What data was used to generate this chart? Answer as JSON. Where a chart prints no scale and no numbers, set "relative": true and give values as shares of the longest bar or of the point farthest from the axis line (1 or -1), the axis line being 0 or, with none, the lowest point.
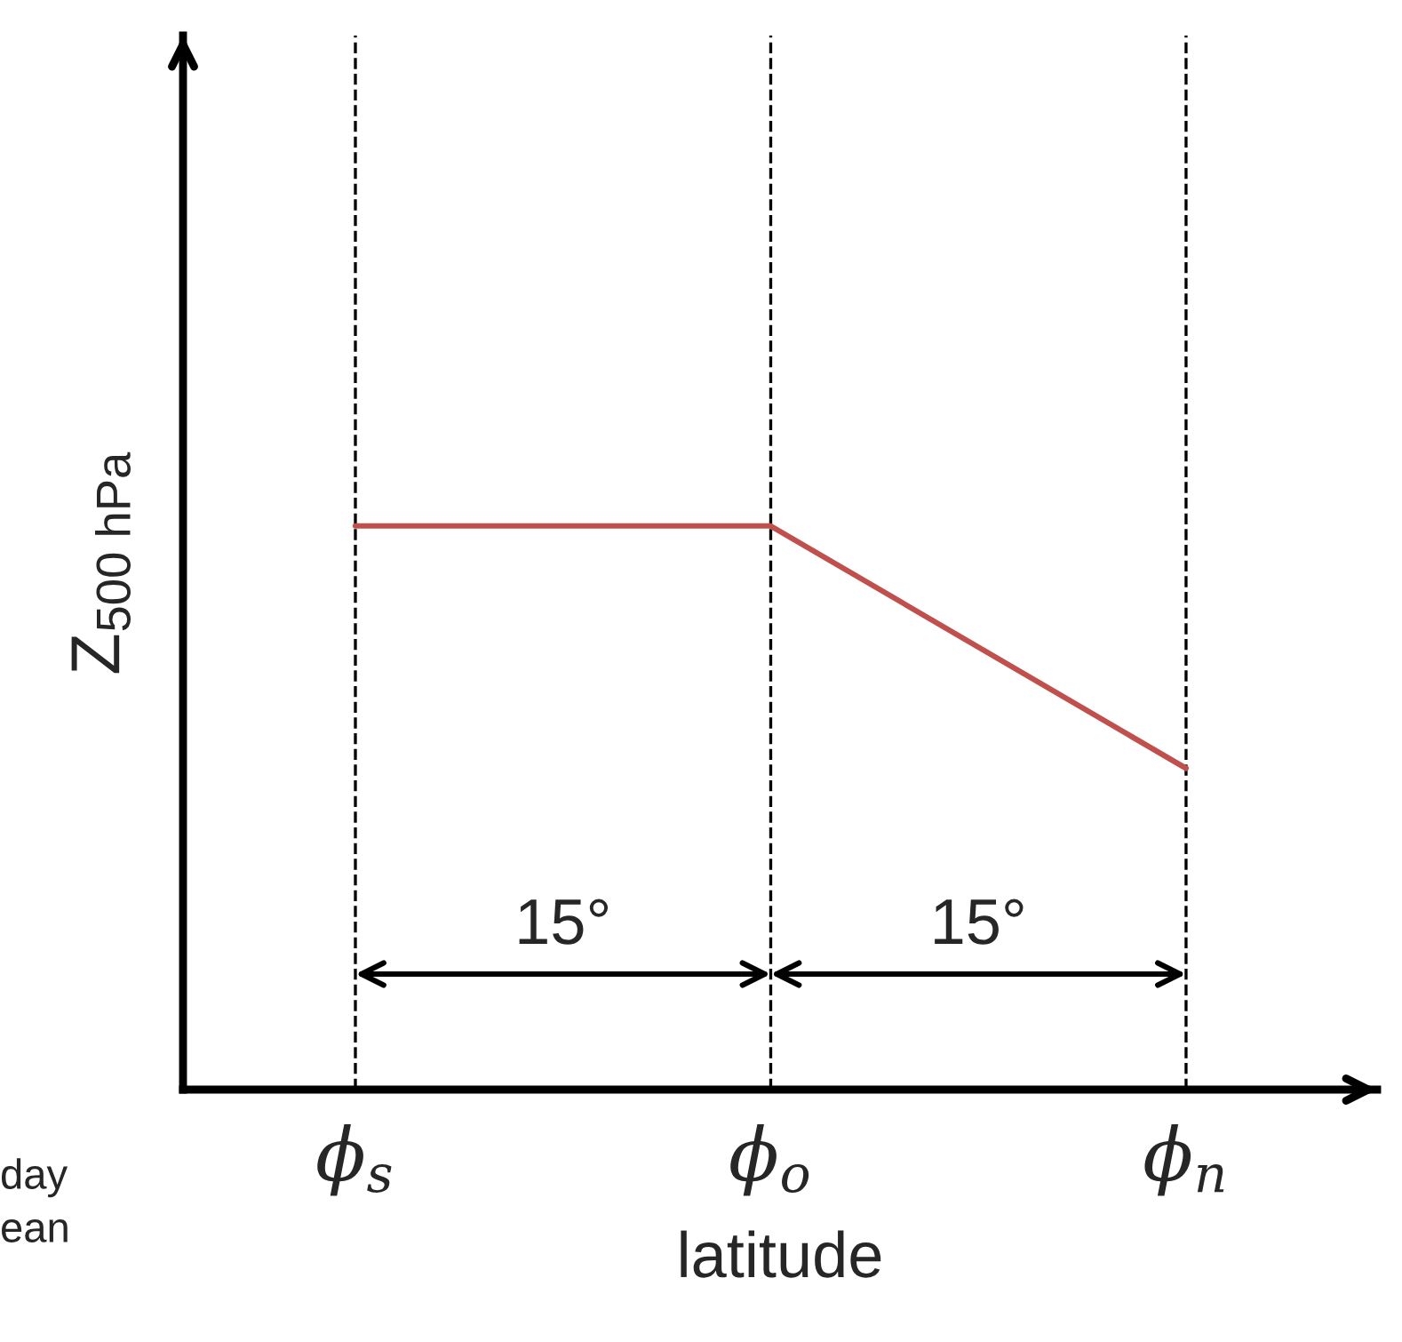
{
  "chart_data": {
    "type": "line",
    "relative": true,
    "xlabel": "latitude",
    "ylabel": "Z$_{500 hPa}$",
    "categories": [
      "ϕ$_{s}$",
      "ϕ$_{o}$",
      "ϕ$_{n}$"
    ],
    "series": [
      {
        "color": "#c0504d",
        "values": [
          1,
          1,
          0.57
        ]
      }
    ],
    "marker": "none",
    "line_style": "solid",
    "grid": "x",
    "legend": false,
    "annotations": [
      "15°",
      "15°",
      "day",
      "ean"
    ]
  }
}
